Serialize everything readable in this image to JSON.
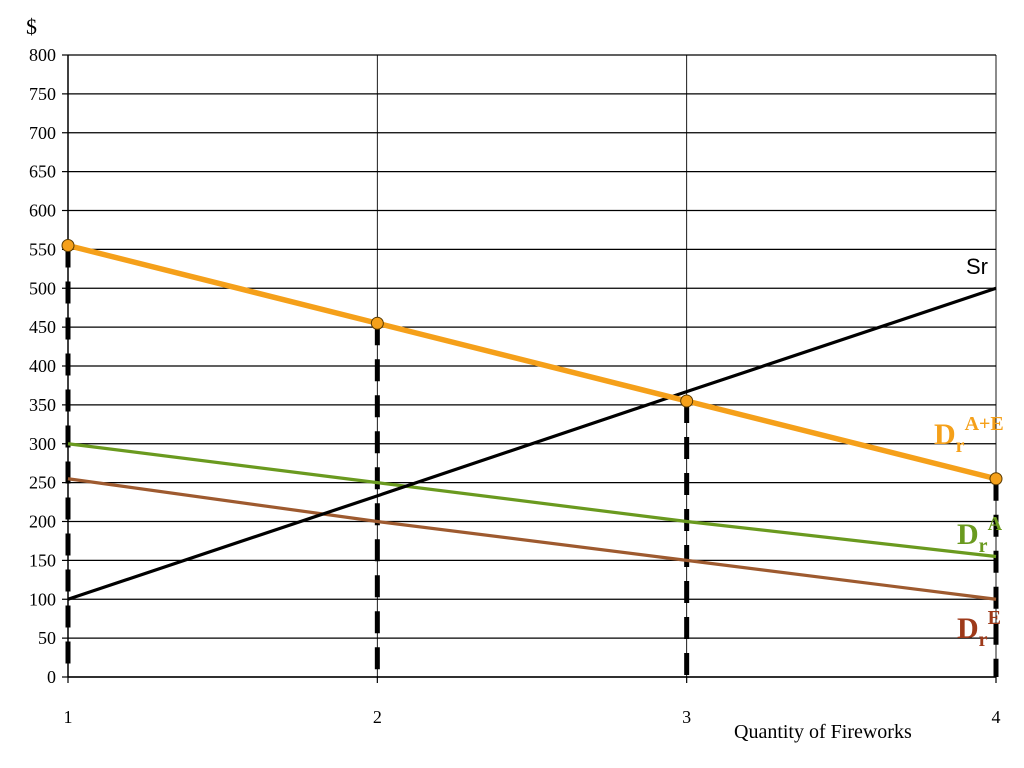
{
  "chart_data": {
    "type": "line",
    "ylabel": "$",
    "xlabel": "Quantity of Fireworks",
    "x": [
      1,
      2,
      3,
      4
    ],
    "xlim": [
      1,
      4
    ],
    "ylim": [
      0,
      800
    ],
    "yticks": [
      0,
      50,
      100,
      150,
      200,
      250,
      300,
      350,
      400,
      450,
      500,
      550,
      600,
      650,
      700,
      750,
      800
    ],
    "grid": true,
    "series": [
      {
        "name": "Sr",
        "label_main": "Sr",
        "label_sub": "",
        "label_sup": "",
        "values": [
          100,
          233,
          367,
          500
        ],
        "color": "#000000",
        "markers": false
      },
      {
        "name": "Dr A+E",
        "label_main": "D",
        "label_sub": "r",
        "label_sup": "A+E",
        "values": [
          555,
          455,
          355,
          255
        ],
        "color": "#f5a01a",
        "markers": true
      },
      {
        "name": "Dr A",
        "label_main": "D",
        "label_sub": "r",
        "label_sup": "A",
        "values": [
          300,
          250,
          200,
          155
        ],
        "color": "#6a9a1f",
        "markers": false
      },
      {
        "name": "Dr E",
        "label_main": "D",
        "label_sub": "r",
        "label_sup": "E",
        "values": [
          255,
          200,
          150,
          100
        ],
        "color": "#9e5a2f",
        "markers": false
      }
    ],
    "dashed_vertical_lines_at_x": [
      1,
      2,
      3,
      4
    ]
  }
}
